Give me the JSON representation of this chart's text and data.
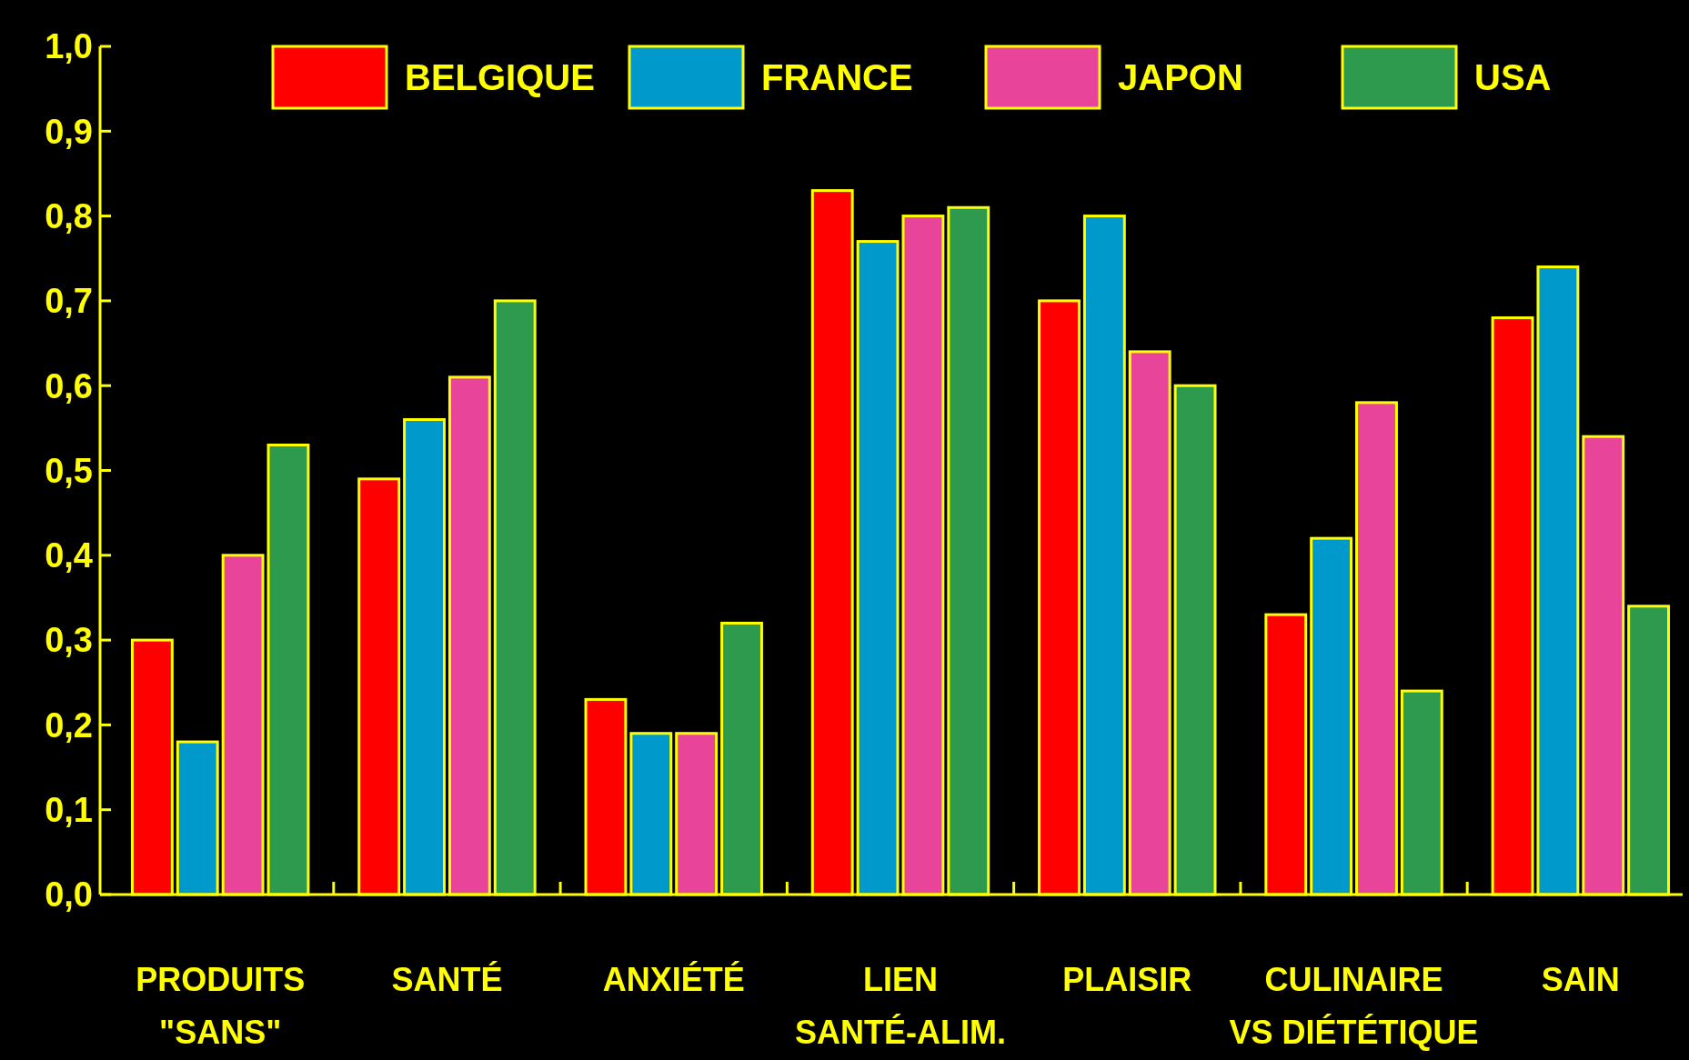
{
  "chart_data": {
    "type": "bar",
    "categories": [
      "PRODUITS\n\"SANS\"",
      "SANTÉ",
      "ANXIÉTÉ",
      "LIEN\nSANTÉ-ALIM.",
      "PLAISIR",
      "CULINAIRE\nVS DIÉTÉTIQUE",
      "SAIN"
    ],
    "series": [
      {
        "name": "BELGIQUE",
        "color": "#ff0000",
        "values": [
          0.3,
          0.49,
          0.23,
          0.83,
          0.7,
          0.33,
          0.68
        ]
      },
      {
        "name": "FRANCE",
        "color": "#0099cc",
        "values": [
          0.18,
          0.56,
          0.19,
          0.77,
          0.8,
          0.42,
          0.74
        ]
      },
      {
        "name": "JAPON",
        "color": "#e8449a",
        "values": [
          0.4,
          0.61,
          0.19,
          0.8,
          0.64,
          0.58,
          0.54
        ]
      },
      {
        "name": "USA",
        "color": "#2e9a4e",
        "values": [
          0.53,
          0.7,
          0.32,
          0.81,
          0.6,
          0.24,
          0.34
        ]
      }
    ],
    "ylim": [
      0,
      1
    ],
    "yticks": [
      {
        "value": 0,
        "label": "0,0"
      },
      {
        "value": 0.1,
        "label": "0,1"
      },
      {
        "value": 0.2,
        "label": "0,2"
      },
      {
        "value": 0.3,
        "label": "0,3"
      },
      {
        "value": 0.4,
        "label": "0,4"
      },
      {
        "value": 0.5,
        "label": "0,5"
      },
      {
        "value": 0.6,
        "label": "0,6"
      },
      {
        "value": 0.7,
        "label": "0,7"
      },
      {
        "value": 0.8,
        "label": "0,8"
      },
      {
        "value": 0.9,
        "label": "0,9"
      },
      {
        "value": 1,
        "label": "1,0"
      }
    ],
    "legend": "top",
    "grid": false
  }
}
